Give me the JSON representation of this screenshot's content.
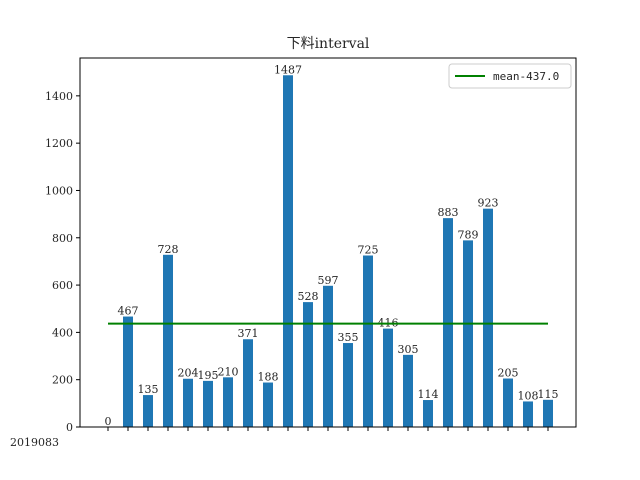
{
  "chart_data": {
    "type": "bar",
    "title": "下料interval",
    "xlabel": "",
    "ylabel": "",
    "ylim": [
      0,
      1560
    ],
    "yticks": [
      0,
      200,
      400,
      600,
      800,
      1000,
      1200,
      1400
    ],
    "grid": false,
    "legend_position": "top-right",
    "categories_note_visible": "2019083",
    "values": [
      0,
      467,
      135,
      728,
      204,
      195,
      210,
      371,
      188,
      1487,
      528,
      597,
      355,
      725,
      416,
      305,
      114,
      883,
      789,
      923,
      205,
      108,
      115
    ],
    "bar_color": "#1f77b4",
    "mean": {
      "label": "mean-437.0",
      "value": 437.0,
      "color": "#008000"
    }
  }
}
